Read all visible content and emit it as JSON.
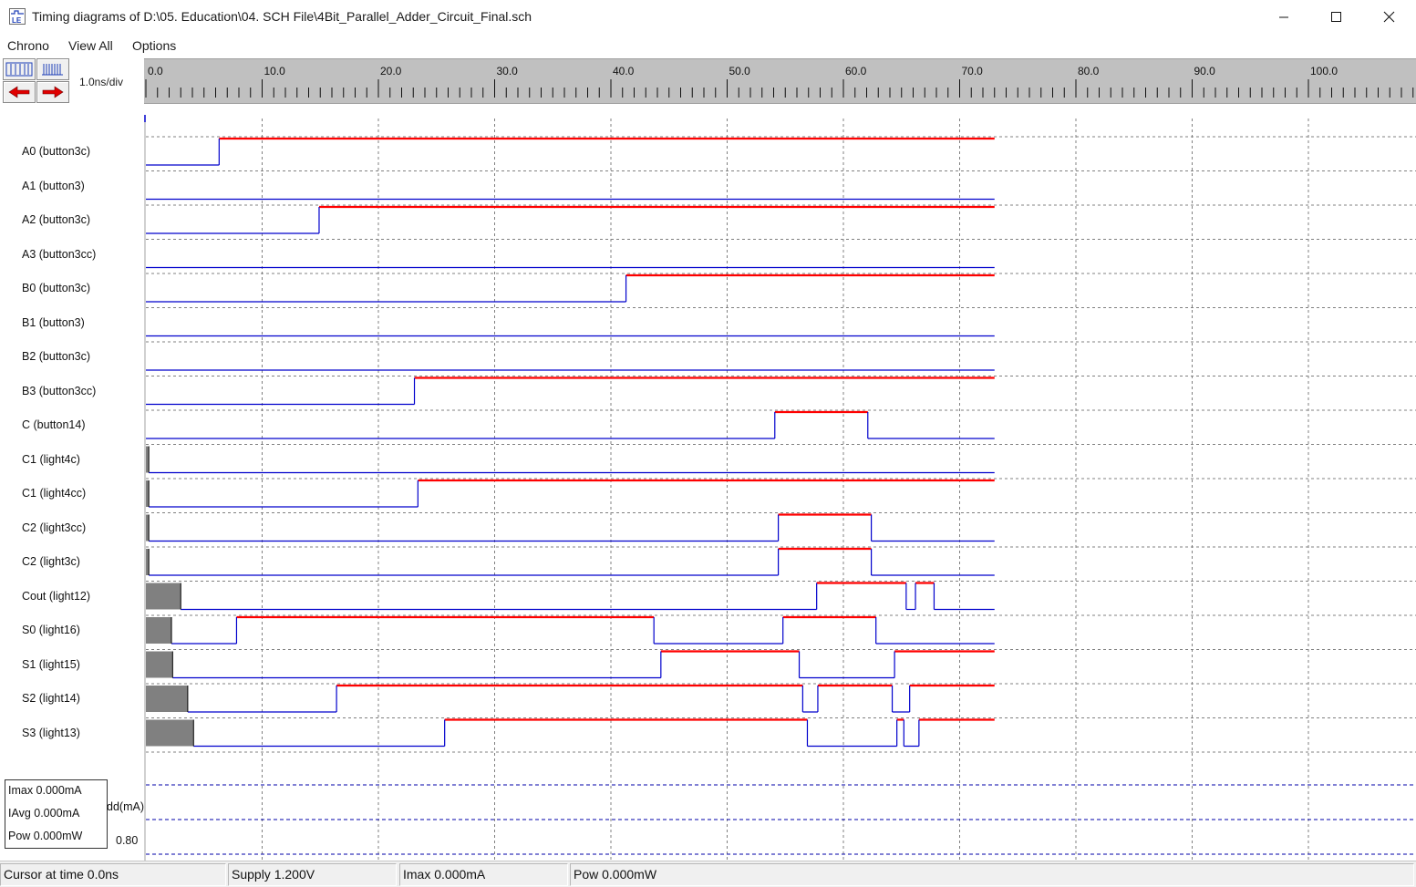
{
  "window": {
    "title": "Timing diagrams of D:\\05. Education\\04. SCH File\\4Bit_Parallel_Adder_Circuit_Final.sch",
    "icon": "dsch-app-icon",
    "controls": [
      "minimize-icon",
      "maximize-icon",
      "close-icon"
    ]
  },
  "menu": {
    "chrono": "Chrono",
    "view_all": "View All",
    "options": "Options"
  },
  "toolbar": {
    "scale": "1.0ns/div",
    "buttons": [
      "zoom-out-icon",
      "zoom-in-icon",
      "scroll-left-icon",
      "scroll-right-icon"
    ]
  },
  "ruler": {
    "unit": "ns",
    "labels": [
      "0.0",
      "10.0",
      "20.0",
      "30.0",
      "40.0",
      "50.0",
      "60.0",
      "70.0",
      "80.0",
      "90.0",
      "100.0"
    ]
  },
  "colors": {
    "high": "#ff0000",
    "low": "#0000cc",
    "unknown": "#808080",
    "grid": "#808080"
  },
  "signals": [
    {
      "name": "A0 (button3c)",
      "init": 0,
      "unknown_until": 0,
      "transitions": [
        [
          6.3,
          1
        ]
      ]
    },
    {
      "name": "A1 (button3)",
      "init": 0,
      "unknown_until": 0,
      "transitions": []
    },
    {
      "name": "A2 (button3c)",
      "init": 0,
      "unknown_until": 0,
      "transitions": [
        [
          14.9,
          1
        ]
      ]
    },
    {
      "name": "A3 (button3cc)",
      "init": 0,
      "unknown_until": 0,
      "transitions": []
    },
    {
      "name": "B0 (button3c)",
      "init": 0,
      "unknown_until": 0,
      "transitions": [
        [
          41.3,
          1
        ]
      ]
    },
    {
      "name": "B1 (button3)",
      "init": 0,
      "unknown_until": 0,
      "transitions": []
    },
    {
      "name": "B2 (button3c)",
      "init": 0,
      "unknown_until": 0,
      "transitions": []
    },
    {
      "name": "B3 (button3cc)",
      "init": 0,
      "unknown_until": 0,
      "transitions": [
        [
          23.1,
          1
        ]
      ]
    },
    {
      "name": "C (button14)",
      "init": 0,
      "unknown_until": 0,
      "transitions": [
        [
          54.1,
          1
        ],
        [
          62.1,
          0
        ]
      ]
    },
    {
      "name": "C1 (light4c)",
      "init": 0,
      "unknown_until": 0.25,
      "transitions": []
    },
    {
      "name": "C1 (light4cc)",
      "init": 0,
      "unknown_until": 0.25,
      "transitions": [
        [
          23.4,
          1
        ]
      ]
    },
    {
      "name": "C2 (light3cc)",
      "init": 0,
      "unknown_until": 0.25,
      "transitions": [
        [
          54.4,
          1
        ],
        [
          62.4,
          0
        ]
      ]
    },
    {
      "name": "C2 (light3c)",
      "init": 0,
      "unknown_until": 0.25,
      "transitions": [
        [
          54.4,
          1
        ],
        [
          62.4,
          0
        ]
      ]
    },
    {
      "name": "Cout (light12)",
      "init": 0,
      "unknown_until": 3.0,
      "transitions": [
        [
          57.7,
          1
        ],
        [
          65.4,
          0
        ],
        [
          66.2,
          1
        ],
        [
          67.8,
          0
        ]
      ]
    },
    {
      "name": "S0 (light16)",
      "init": 0,
      "unknown_until": 2.2,
      "transitions": [
        [
          7.8,
          1
        ],
        [
          43.7,
          0
        ],
        [
          54.8,
          1
        ],
        [
          62.8,
          0
        ]
      ]
    },
    {
      "name": "S1 (light15)",
      "init": 0,
      "unknown_until": 2.3,
      "transitions": [
        [
          44.3,
          1
        ],
        [
          56.2,
          0
        ],
        [
          64.4,
          1
        ]
      ]
    },
    {
      "name": "S2 (light14)",
      "init": 0,
      "unknown_until": 3.6,
      "transitions": [
        [
          16.4,
          1
        ],
        [
          56.5,
          0
        ],
        [
          57.8,
          1
        ],
        [
          64.2,
          0
        ],
        [
          65.7,
          1
        ]
      ]
    },
    {
      "name": "S3 (light13)",
      "init": 0,
      "unknown_until": 4.1,
      "transitions": [
        [
          25.7,
          1
        ],
        [
          56.9,
          0
        ],
        [
          64.6,
          1
        ],
        [
          65.2,
          0
        ],
        [
          66.5,
          1
        ]
      ]
    }
  ],
  "sim_end": 73.0,
  "power": {
    "imax": "Imax 0.000mA",
    "iavg": "IAvg 0.000mA",
    "pow": "Pow 0.000mW",
    "idd_label": "dd(mA)",
    "idd_value": "0.80"
  },
  "status": {
    "cursor": "Cursor at time  0.0ns",
    "supply": "Supply 1.200V",
    "imax": "Imax 0.000mA",
    "pow": "Pow 0.000mW"
  }
}
